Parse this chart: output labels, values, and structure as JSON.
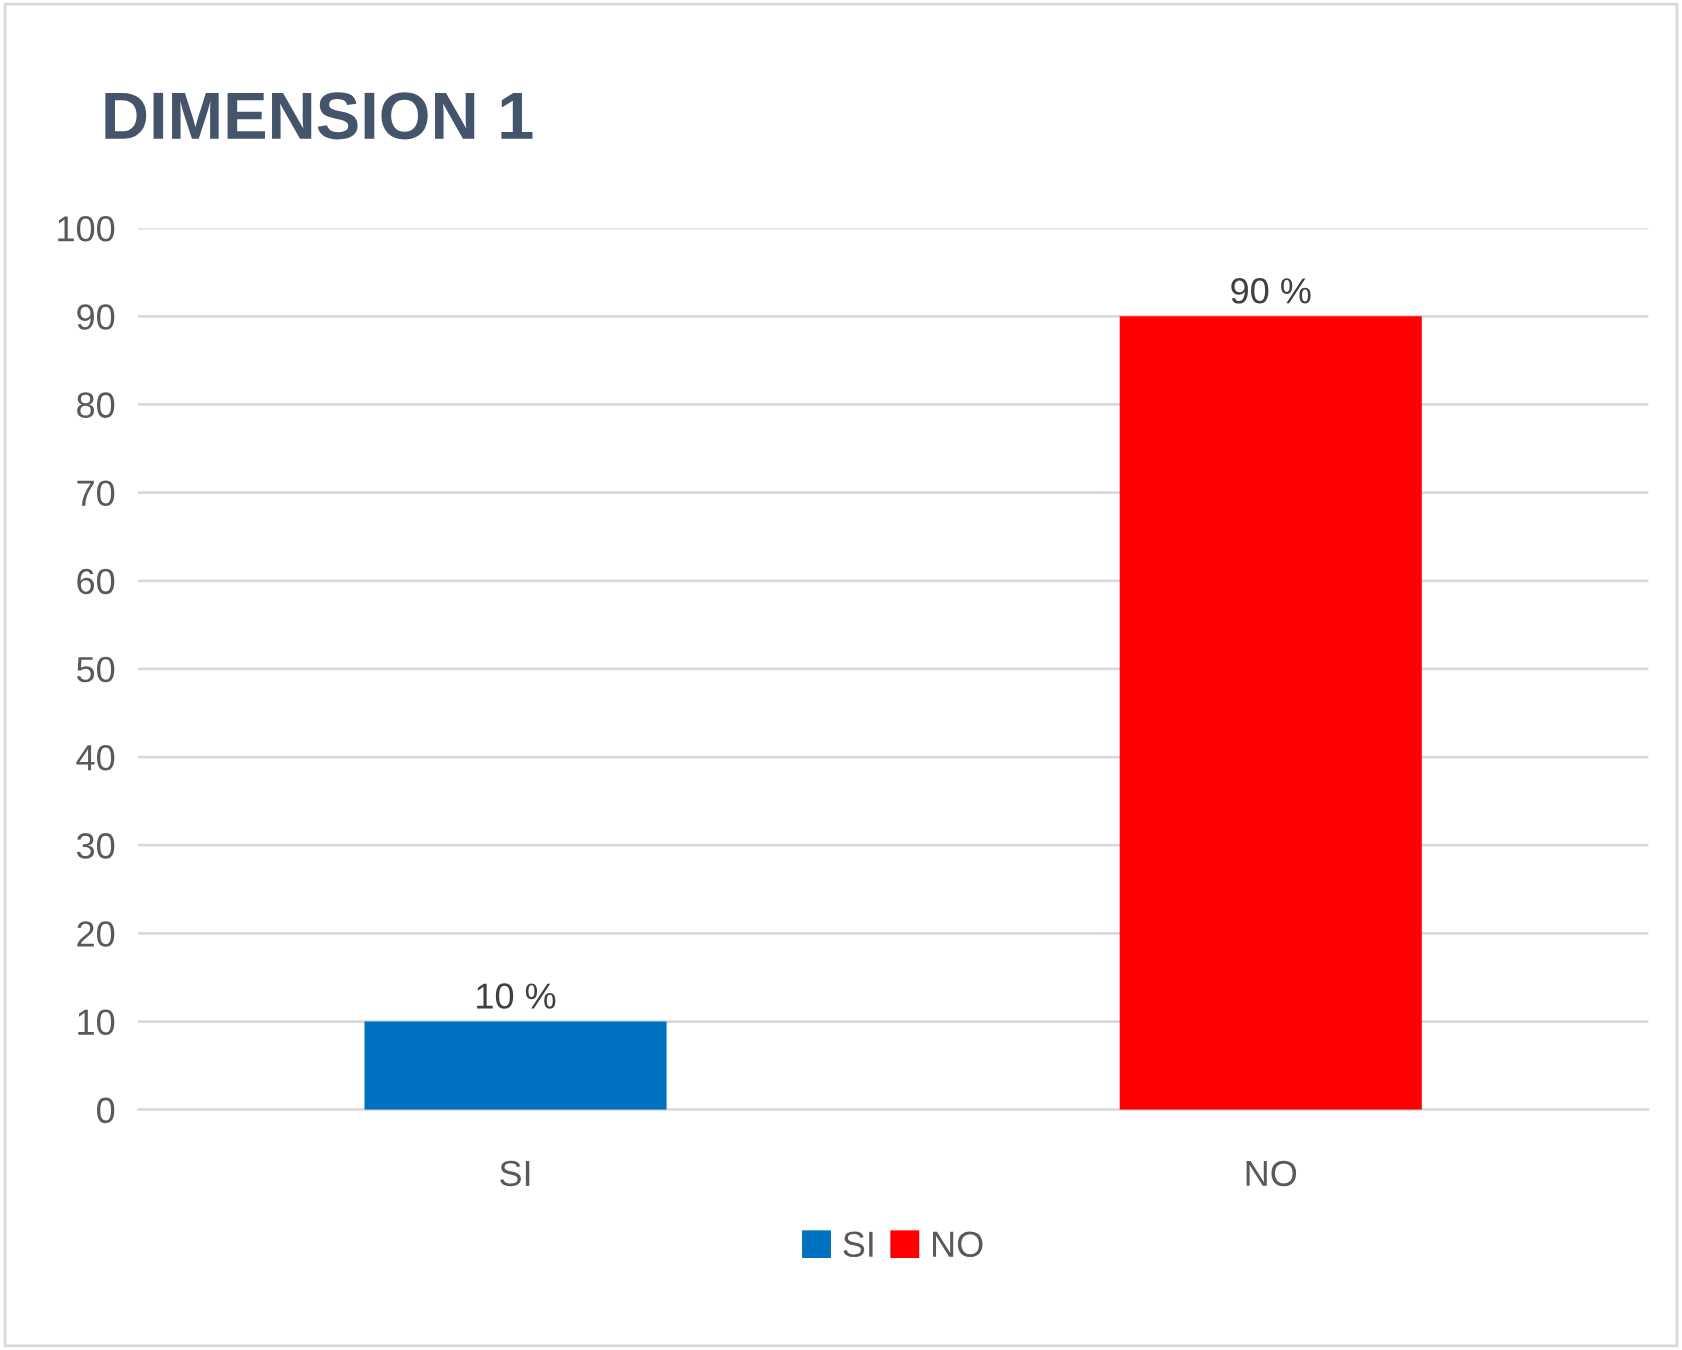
{
  "chart_data": {
    "type": "bar",
    "title": "DIMENSION 1",
    "categories": [
      "SI",
      "NO"
    ],
    "series": [
      {
        "name": "SI",
        "color": "#0070c0",
        "values": [
          10,
          null
        ],
        "value_labels": [
          "10 %",
          null
        ]
      },
      {
        "name": "NO",
        "color": "#ff0000",
        "values": [
          null,
          90
        ],
        "value_labels": [
          null,
          "90 %"
        ]
      }
    ],
    "ylim": [
      0,
      100
    ],
    "yticks": [
      0,
      10,
      20,
      30,
      40,
      50,
      60,
      70,
      80,
      90,
      100
    ],
    "grid": "y",
    "legend": "bottom"
  }
}
